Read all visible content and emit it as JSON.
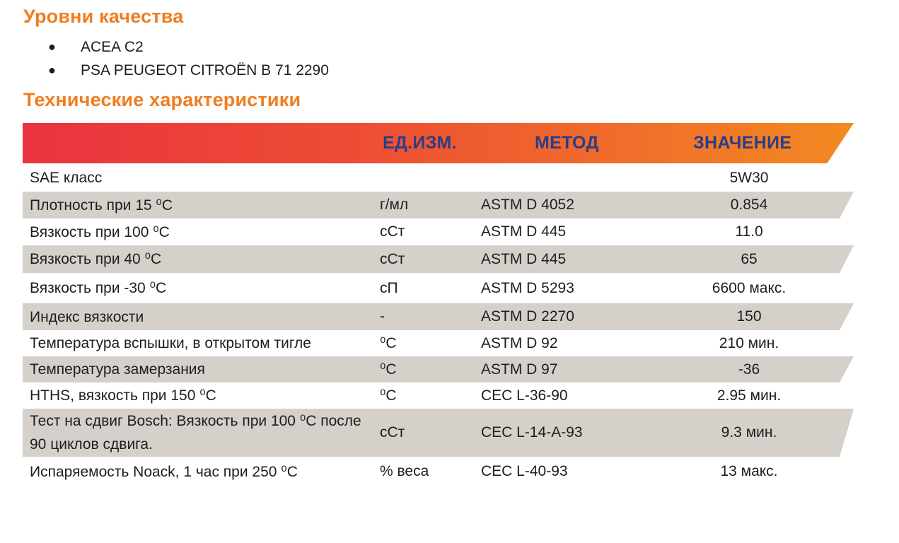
{
  "quality": {
    "title": "Уровни качества",
    "items": [
      "ACEA C2",
      "PSA PEUGEOT CITROËN B 71 2290"
    ]
  },
  "specs": {
    "title": "Технические характеристики",
    "header": {
      "unit": "ЕД.ИЗМ.",
      "method": "МЕТОД",
      "value": "ЗНАЧЕНИЕ"
    },
    "rows": [
      {
        "param": "SAE класс",
        "unit": "",
        "method": "",
        "value": "5W30"
      },
      {
        "param": "Плотность при 15 ⁰С",
        "unit": "г/мл",
        "method": "ASTM D 4052",
        "value": "0.854"
      },
      {
        "param": "Вязкость при 100 ⁰С",
        "unit": "сСт",
        "method": "ASTM D 445",
        "value": "11.0"
      },
      {
        "param": "Вязкость при 40 ⁰С",
        "unit": "сСт",
        "method": "ASTM D 445",
        "value": "65"
      },
      {
        "param": "Вязкость при -30 ⁰С",
        "unit": "сП",
        "method": "ASTM D 5293",
        "value": "6600 макс."
      },
      {
        "param": "Индекс вязкости",
        "unit": "-",
        "method": "ASTM D 2270",
        "value": "150"
      },
      {
        "param": "Температура вспышки, в открытом тигле",
        "unit": "⁰С",
        "method": "ASTM D 92",
        "value": "210 мин."
      },
      {
        "param": "Температура замерзания",
        "unit": "⁰С",
        "method": "ASTM D 97",
        "value": "-36"
      },
      {
        "param": "HTHS, вязкость при 150 ⁰С",
        "unit": "⁰С",
        "method": "CEC L-36-90",
        "value": "2.95 мин."
      },
      {
        "param": "Тест на сдвиг Bosch: Вязкость при 100 ⁰С после 90 циклов сдвига.",
        "unit": "сСт",
        "method": "CEC L-14-A-93",
        "value": "9.3 мин."
      },
      {
        "param": "Испаряемость Noack, 1 час при 250 ⁰С",
        "unit": "% веса",
        "method": "CEC L-40-93",
        "value": "13 макс."
      }
    ]
  },
  "colors": {
    "title_orange": "#ef7d1f",
    "header_text": "#2c3d86",
    "row_shade": "#d5d0ca",
    "gradient_start": "#ea3340",
    "gradient_end": "#f28a21"
  }
}
